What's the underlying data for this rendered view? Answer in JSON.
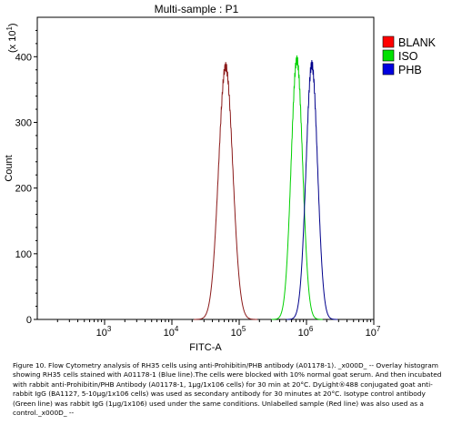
{
  "chart_data": {
    "type": "line",
    "title": "Multi-sample : P1",
    "xlabel": "FITC-A",
    "ylabel": "Count",
    "y_multiplier_label": "(x 10",
    "y_multiplier_exp": "1",
    "x_scale": "log",
    "xlim": [
      100,
      10000000
    ],
    "ylim": [
      0,
      460
    ],
    "y_ticks": [
      0,
      100,
      200,
      300,
      400
    ],
    "x_ticks": [
      {
        "value": 1000,
        "base": "10",
        "exp": "3"
      },
      {
        "value": 10000,
        "base": "10",
        "exp": "4"
      },
      {
        "value": 100000,
        "base": "10",
        "exp": "5"
      },
      {
        "value": 1000000,
        "base": "10",
        "exp": "6"
      },
      {
        "value": 10000000,
        "base": "10",
        "exp": "7"
      }
    ],
    "grid": false,
    "legend_position": "right",
    "series": [
      {
        "name": "BLANK",
        "color": "#ff0000",
        "line_color": "#8b1a1a",
        "peak_x": 63000,
        "peak_y": 385,
        "spread_log10": 0.105
      },
      {
        "name": "ISO",
        "color": "#00e000",
        "line_color": "#00d000",
        "peak_x": 720000,
        "peak_y": 395,
        "spread_log10": 0.085
      },
      {
        "name": "PHB",
        "color": "#0000e0",
        "line_color": "#00008b",
        "peak_x": 1200000,
        "peak_y": 388,
        "spread_log10": 0.085
      }
    ]
  },
  "caption": "Figure 10. Flow Cytometry analysis of RH35 cells using anti-Prohibitin/PHB antibody (A01178-1). _x000D_ -- Overlay histogram showing RH35 cells stained with A01178-1 (Blue line).The cells were blocked with 10% normal goat serum. And then incubated with rabbit anti-Prohibitin/PHB Antibody (A01178-1, 1μg/1x106 cells) for 30 min at 20°C. DyLight®488 conjugated goat anti-rabbit IgG (BA1127, 5-10μg/1x106 cells) was used as secondary antibody for 30 minutes at 20°C. Isotype control antibody (Green line) was rabbit IgG (1μg/1x106) used under the same conditions. Unlabelled sample (Red line) was also used as a control._x000D_ --"
}
